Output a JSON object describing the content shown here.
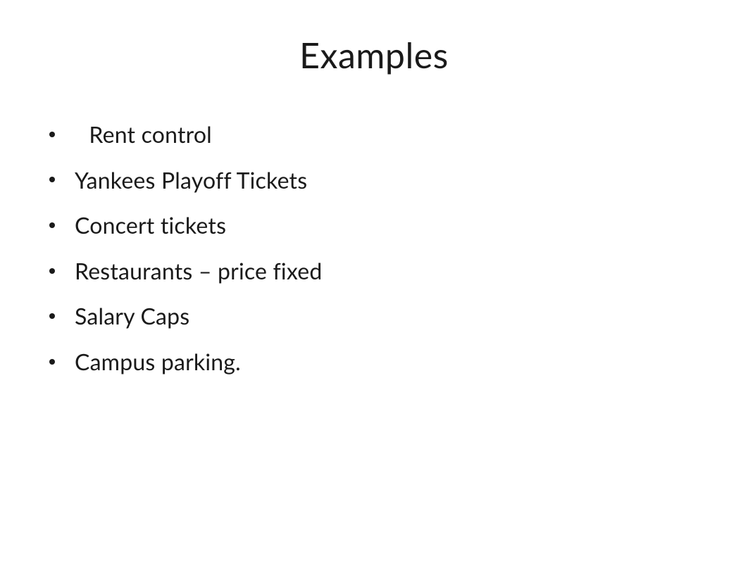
{
  "slide": {
    "title": "Examples",
    "title_fontsize": 50,
    "title_color": "#1a1a1a",
    "background_color": "#ffffff",
    "bullets": [
      {
        "text": " Rent control"
      },
      {
        "text": "Yankees Playoff Tickets"
      },
      {
        "text": "Concert tickets"
      },
      {
        "text": "Restaurants – price fixed"
      },
      {
        "text": "Salary Caps"
      },
      {
        "text": "Campus parking."
      }
    ],
    "bullet_fontsize": 32,
    "bullet_color": "#1a1a1a",
    "bullet_dot_color": "#1a1a1a"
  }
}
